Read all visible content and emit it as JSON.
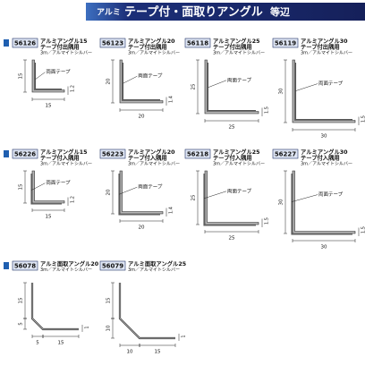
{
  "header": {
    "prefix": "アルミ",
    "title": "テープ付・面取りアングル",
    "subtitle": "等辺"
  },
  "products": [
    {
      "code": "56126",
      "lines": [
        "アルミアングル15",
        "テープ付出隅用",
        "3m／アルマイトシルバー"
      ],
      "dims": [
        15,
        1.2,
        15
      ],
      "tape": "両面テープ"
    },
    {
      "code": "56123",
      "lines": [
        "アルミアングル20",
        "テープ付出隅用",
        "3m／アルマイトシルバー"
      ],
      "dims": [
        20,
        1.4,
        20
      ],
      "tape": "両面テープ"
    },
    {
      "code": "56118",
      "lines": [
        "アルミアングル25",
        "テープ付出隅用",
        "3m／アルマイトシルバー"
      ],
      "dims": [
        25,
        1.5,
        25
      ],
      "tape": "両面テープ"
    },
    {
      "code": "56119",
      "lines": [
        "アルミアングル30",
        "テープ付出隅用",
        "3m／アルマイトシルバー"
      ],
      "dims": [
        30,
        1.5,
        30
      ],
      "tape": "両面テープ"
    },
    {
      "code": "56226",
      "lines": [
        "アルミアングル15",
        "テープ付入隅用",
        "3m／アルマイトシルバー"
      ],
      "dims": [
        15,
        1.2,
        15
      ],
      "tape": "両面テープ"
    },
    {
      "code": "56223",
      "lines": [
        "アルミアングル20",
        "テープ付入隅用",
        "3m／アルマイトシルバー"
      ],
      "dims": [
        20,
        1.4,
        20
      ],
      "tape": "両面テープ"
    },
    {
      "code": "56218",
      "lines": [
        "アルミアングル25",
        "テープ付入隅用",
        "3m／アルマイトシルバー"
      ],
      "dims": [
        25,
        1.5,
        25
      ],
      "tape": "両面テープ"
    },
    {
      "code": "56227",
      "lines": [
        "アルミアングル30",
        "テープ付入隅用",
        "3m／アルマイトシルバー"
      ],
      "dims": [
        30,
        1.5,
        30
      ],
      "tape": "両面テープ"
    },
    {
      "code": "56078",
      "lines": [
        "アルミ面取アングル20",
        "3m／アルマイトシルバー"
      ],
      "dims": [
        15,
        5,
        5,
        15,
        1
      ]
    },
    {
      "code": "56079",
      "lines": [
        "アルミ面取アングル25",
        "3m／アルマイトシルバー"
      ],
      "dims": [
        15,
        10,
        10,
        15,
        1
      ]
    }
  ]
}
